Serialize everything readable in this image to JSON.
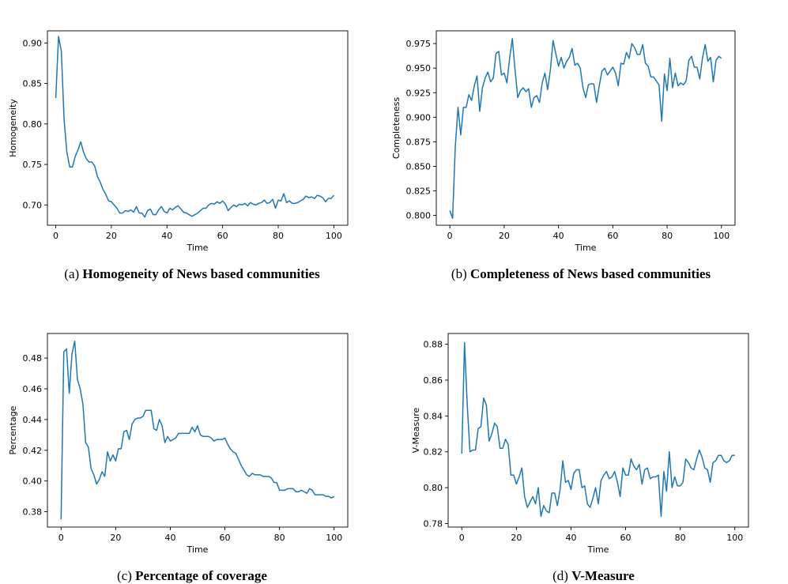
{
  "series_color": "#1f77b4",
  "chart_data": [
    {
      "type": "line",
      "caption_prefix": "(a)",
      "caption_title": "Homogeneity of News based communities",
      "xlabel": "Time",
      "ylabel": "Homogeneity",
      "xlim": [
        -3,
        105
      ],
      "ylim": [
        0.675,
        0.915
      ],
      "xticks": [
        0,
        20,
        40,
        60,
        80,
        100
      ],
      "yticks": [
        0.7,
        0.75,
        0.8,
        0.85,
        0.9
      ],
      "ytick_labels": [
        "0.70",
        "0.75",
        "0.80",
        "0.85",
        "0.90"
      ],
      "grid": false,
      "x": [
        0,
        1,
        2,
        3,
        4,
        5,
        6,
        7,
        8,
        9,
        10,
        11,
        12,
        13,
        14,
        15,
        16,
        17,
        18,
        19,
        20,
        21,
        22,
        23,
        24,
        25,
        26,
        27,
        28,
        29,
        30,
        31,
        32,
        33,
        34,
        35,
        36,
        37,
        38,
        39,
        40,
        41,
        42,
        43,
        44,
        45,
        46,
        47,
        48,
        49,
        50,
        51,
        52,
        53,
        54,
        55,
        56,
        57,
        58,
        59,
        60,
        61,
        62,
        63,
        64,
        65,
        66,
        67,
        68,
        69,
        70,
        71,
        72,
        73,
        74,
        75,
        76,
        77,
        78,
        79,
        80,
        81,
        82,
        83,
        84,
        85,
        86,
        87,
        88,
        89,
        90,
        91,
        92,
        93,
        94,
        95,
        96,
        97,
        98,
        99,
        100
      ],
      "values": [
        0.832,
        0.908,
        0.89,
        0.805,
        0.765,
        0.747,
        0.747,
        0.76,
        0.768,
        0.778,
        0.765,
        0.757,
        0.753,
        0.753,
        0.748,
        0.735,
        0.728,
        0.719,
        0.713,
        0.705,
        0.704,
        0.7,
        0.696,
        0.69,
        0.69,
        0.693,
        0.692,
        0.694,
        0.691,
        0.698,
        0.69,
        0.69,
        0.685,
        0.693,
        0.695,
        0.688,
        0.688,
        0.694,
        0.698,
        0.692,
        0.69,
        0.696,
        0.694,
        0.697,
        0.699,
        0.695,
        0.691,
        0.69,
        0.688,
        0.686,
        0.688,
        0.69,
        0.693,
        0.696,
        0.696,
        0.7,
        0.702,
        0.701,
        0.704,
        0.702,
        0.705,
        0.701,
        0.693,
        0.697,
        0.7,
        0.698,
        0.701,
        0.7,
        0.702,
        0.699,
        0.703,
        0.701,
        0.7,
        0.702,
        0.703,
        0.706,
        0.702,
        0.703,
        0.707,
        0.696,
        0.706,
        0.705,
        0.714,
        0.703,
        0.705,
        0.702,
        0.702,
        0.703,
        0.705,
        0.707,
        0.711,
        0.709,
        0.71,
        0.708,
        0.712,
        0.711,
        0.709,
        0.704,
        0.708,
        0.708,
        0.712
      ]
    },
    {
      "type": "line",
      "caption_prefix": "(b)",
      "caption_title": "Completeness of News based communities",
      "xlabel": "Time",
      "ylabel": "Completeness",
      "xlim": [
        -5,
        105
      ],
      "ylim": [
        0.79,
        0.988
      ],
      "xticks": [
        0,
        20,
        40,
        60,
        80,
        100
      ],
      "yticks": [
        0.8,
        0.825,
        0.85,
        0.875,
        0.9,
        0.925,
        0.95,
        0.975
      ],
      "ytick_labels": [
        "0.800",
        "0.825",
        "0.850",
        "0.875",
        "0.900",
        "0.925",
        "0.950",
        "0.975"
      ],
      "grid": false,
      "x": [
        0,
        1,
        2,
        3,
        4,
        5,
        6,
        7,
        8,
        9,
        10,
        11,
        12,
        13,
        14,
        15,
        16,
        17,
        18,
        19,
        20,
        21,
        22,
        23,
        24,
        25,
        26,
        27,
        28,
        29,
        30,
        31,
        32,
        33,
        34,
        35,
        36,
        37,
        38,
        39,
        40,
        41,
        42,
        43,
        44,
        45,
        46,
        47,
        48,
        49,
        50,
        51,
        52,
        53,
        54,
        55,
        56,
        57,
        58,
        59,
        60,
        61,
        62,
        63,
        64,
        65,
        66,
        67,
        68,
        69,
        70,
        71,
        72,
        73,
        74,
        75,
        76,
        77,
        78,
        79,
        80,
        81,
        82,
        83,
        84,
        85,
        86,
        87,
        88,
        89,
        90,
        91,
        92,
        93,
        94,
        95,
        96,
        97,
        98,
        99,
        100
      ],
      "values": [
        0.805,
        0.797,
        0.87,
        0.91,
        0.882,
        0.91,
        0.91,
        0.923,
        0.917,
        0.932,
        0.942,
        0.906,
        0.93,
        0.94,
        0.946,
        0.936,
        0.94,
        0.965,
        0.967,
        0.943,
        0.945,
        0.935,
        0.96,
        0.98,
        0.948,
        0.92,
        0.927,
        0.93,
        0.926,
        0.929,
        0.91,
        0.92,
        0.922,
        0.915,
        0.935,
        0.945,
        0.928,
        0.948,
        0.978,
        0.965,
        0.952,
        0.961,
        0.95,
        0.957,
        0.961,
        0.97,
        0.953,
        0.955,
        0.95,
        0.93,
        0.92,
        0.933,
        0.934,
        0.934,
        0.915,
        0.932,
        0.947,
        0.95,
        0.943,
        0.947,
        0.951,
        0.945,
        0.932,
        0.955,
        0.954,
        0.966,
        0.96,
        0.975,
        0.971,
        0.964,
        0.964,
        0.974,
        0.955,
        0.952,
        0.941,
        0.941,
        0.937,
        0.933,
        0.896,
        0.944,
        0.927,
        0.96,
        0.93,
        0.945,
        0.932,
        0.935,
        0.933,
        0.937,
        0.958,
        0.962,
        0.951,
        0.951,
        0.939,
        0.96,
        0.974,
        0.957,
        0.961,
        0.936,
        0.958,
        0.962,
        0.96
      ]
    },
    {
      "type": "line",
      "caption_prefix": "(c)",
      "caption_title": "Percentage of coverage",
      "xlabel": "Time",
      "ylabel": "Percentage",
      "xlim": [
        -5,
        105
      ],
      "ylim": [
        0.37,
        0.496
      ],
      "xticks": [
        0,
        20,
        40,
        60,
        80,
        100
      ],
      "yticks": [
        0.38,
        0.4,
        0.42,
        0.44,
        0.46,
        0.48
      ],
      "ytick_labels": [
        "0.38",
        "0.40",
        "0.42",
        "0.44",
        "0.46",
        "0.48"
      ],
      "grid": false,
      "x": [
        0,
        1,
        2,
        3,
        4,
        5,
        6,
        7,
        8,
        9,
        10,
        11,
        12,
        13,
        14,
        15,
        16,
        17,
        18,
        19,
        20,
        21,
        22,
        23,
        24,
        25,
        26,
        27,
        28,
        29,
        30,
        31,
        32,
        33,
        34,
        35,
        36,
        37,
        38,
        39,
        40,
        41,
        42,
        43,
        44,
        45,
        46,
        47,
        48,
        49,
        50,
        51,
        52,
        53,
        54,
        55,
        56,
        57,
        58,
        59,
        60,
        61,
        62,
        63,
        64,
        65,
        66,
        67,
        68,
        69,
        70,
        71,
        72,
        73,
        74,
        75,
        76,
        77,
        78,
        79,
        80,
        81,
        82,
        83,
        84,
        85,
        86,
        87,
        88,
        89,
        90,
        91,
        92,
        93,
        94,
        95,
        96,
        97,
        98,
        99,
        100
      ],
      "values": [
        0.375,
        0.484,
        0.486,
        0.457,
        0.483,
        0.491,
        0.466,
        0.46,
        0.45,
        0.425,
        0.422,
        0.408,
        0.404,
        0.398,
        0.401,
        0.406,
        0.403,
        0.419,
        0.413,
        0.417,
        0.413,
        0.421,
        0.421,
        0.432,
        0.433,
        0.427,
        0.437,
        0.44,
        0.441,
        0.441,
        0.442,
        0.446,
        0.446,
        0.446,
        0.434,
        0.433,
        0.44,
        0.436,
        0.425,
        0.429,
        0.426,
        0.427,
        0.428,
        0.431,
        0.431,
        0.431,
        0.431,
        0.431,
        0.435,
        0.432,
        0.436,
        0.43,
        0.429,
        0.429,
        0.429,
        0.428,
        0.426,
        0.427,
        0.427,
        0.427,
        0.428,
        0.424,
        0.421,
        0.419,
        0.418,
        0.414,
        0.41,
        0.407,
        0.404,
        0.403,
        0.405,
        0.404,
        0.404,
        0.404,
        0.403,
        0.403,
        0.403,
        0.402,
        0.399,
        0.399,
        0.394,
        0.394,
        0.394,
        0.395,
        0.395,
        0.395,
        0.393,
        0.393,
        0.394,
        0.393,
        0.392,
        0.395,
        0.394,
        0.391,
        0.391,
        0.391,
        0.391,
        0.39,
        0.39,
        0.389,
        0.39
      ]
    },
    {
      "type": "line",
      "caption_prefix": "(d)",
      "caption_title": "V-Measure",
      "xlabel": "Time",
      "ylabel": "V-Measure",
      "xlim": [
        -5,
        105
      ],
      "ylim": [
        0.778,
        0.886
      ],
      "xticks": [
        0,
        20,
        40,
        60,
        80,
        100
      ],
      "yticks": [
        0.78,
        0.8,
        0.82,
        0.84,
        0.86,
        0.88
      ],
      "ytick_labels": [
        "0.78",
        "0.80",
        "0.82",
        "0.84",
        "0.86",
        "0.88"
      ],
      "grid": false,
      "x": [
        0,
        1,
        2,
        3,
        4,
        5,
        6,
        7,
        8,
        9,
        10,
        11,
        12,
        13,
        14,
        15,
        16,
        17,
        18,
        19,
        20,
        21,
        22,
        23,
        24,
        25,
        26,
        27,
        28,
        29,
        30,
        31,
        32,
        33,
        34,
        35,
        36,
        37,
        38,
        39,
        40,
        41,
        42,
        43,
        44,
        45,
        46,
        47,
        48,
        49,
        50,
        51,
        52,
        53,
        54,
        55,
        56,
        57,
        58,
        59,
        60,
        61,
        62,
        63,
        64,
        65,
        66,
        67,
        68,
        69,
        70,
        71,
        72,
        73,
        74,
        75,
        76,
        77,
        78,
        79,
        80,
        81,
        82,
        83,
        84,
        85,
        86,
        87,
        88,
        89,
        90,
        91,
        92,
        93,
        94,
        95,
        96,
        97,
        98,
        99,
        100
      ],
      "values": [
        0.819,
        0.881,
        0.846,
        0.82,
        0.821,
        0.821,
        0.833,
        0.834,
        0.85,
        0.846,
        0.826,
        0.83,
        0.836,
        0.834,
        0.822,
        0.822,
        0.827,
        0.824,
        0.807,
        0.807,
        0.802,
        0.806,
        0.811,
        0.795,
        0.789,
        0.792,
        0.795,
        0.791,
        0.8,
        0.784,
        0.79,
        0.787,
        0.786,
        0.797,
        0.797,
        0.79,
        0.799,
        0.815,
        0.803,
        0.804,
        0.799,
        0.808,
        0.81,
        0.81,
        0.8,
        0.801,
        0.791,
        0.789,
        0.794,
        0.8,
        0.791,
        0.804,
        0.807,
        0.809,
        0.805,
        0.806,
        0.809,
        0.803,
        0.795,
        0.811,
        0.807,
        0.807,
        0.816,
        0.812,
        0.81,
        0.813,
        0.802,
        0.81,
        0.811,
        0.805,
        0.806,
        0.806,
        0.807,
        0.784,
        0.809,
        0.798,
        0.82,
        0.8,
        0.806,
        0.801,
        0.801,
        0.803,
        0.816,
        0.814,
        0.811,
        0.81,
        0.816,
        0.821,
        0.817,
        0.811,
        0.81,
        0.803,
        0.814,
        0.815,
        0.818,
        0.818,
        0.815,
        0.814,
        0.815,
        0.818,
        0.818
      ]
    }
  ]
}
